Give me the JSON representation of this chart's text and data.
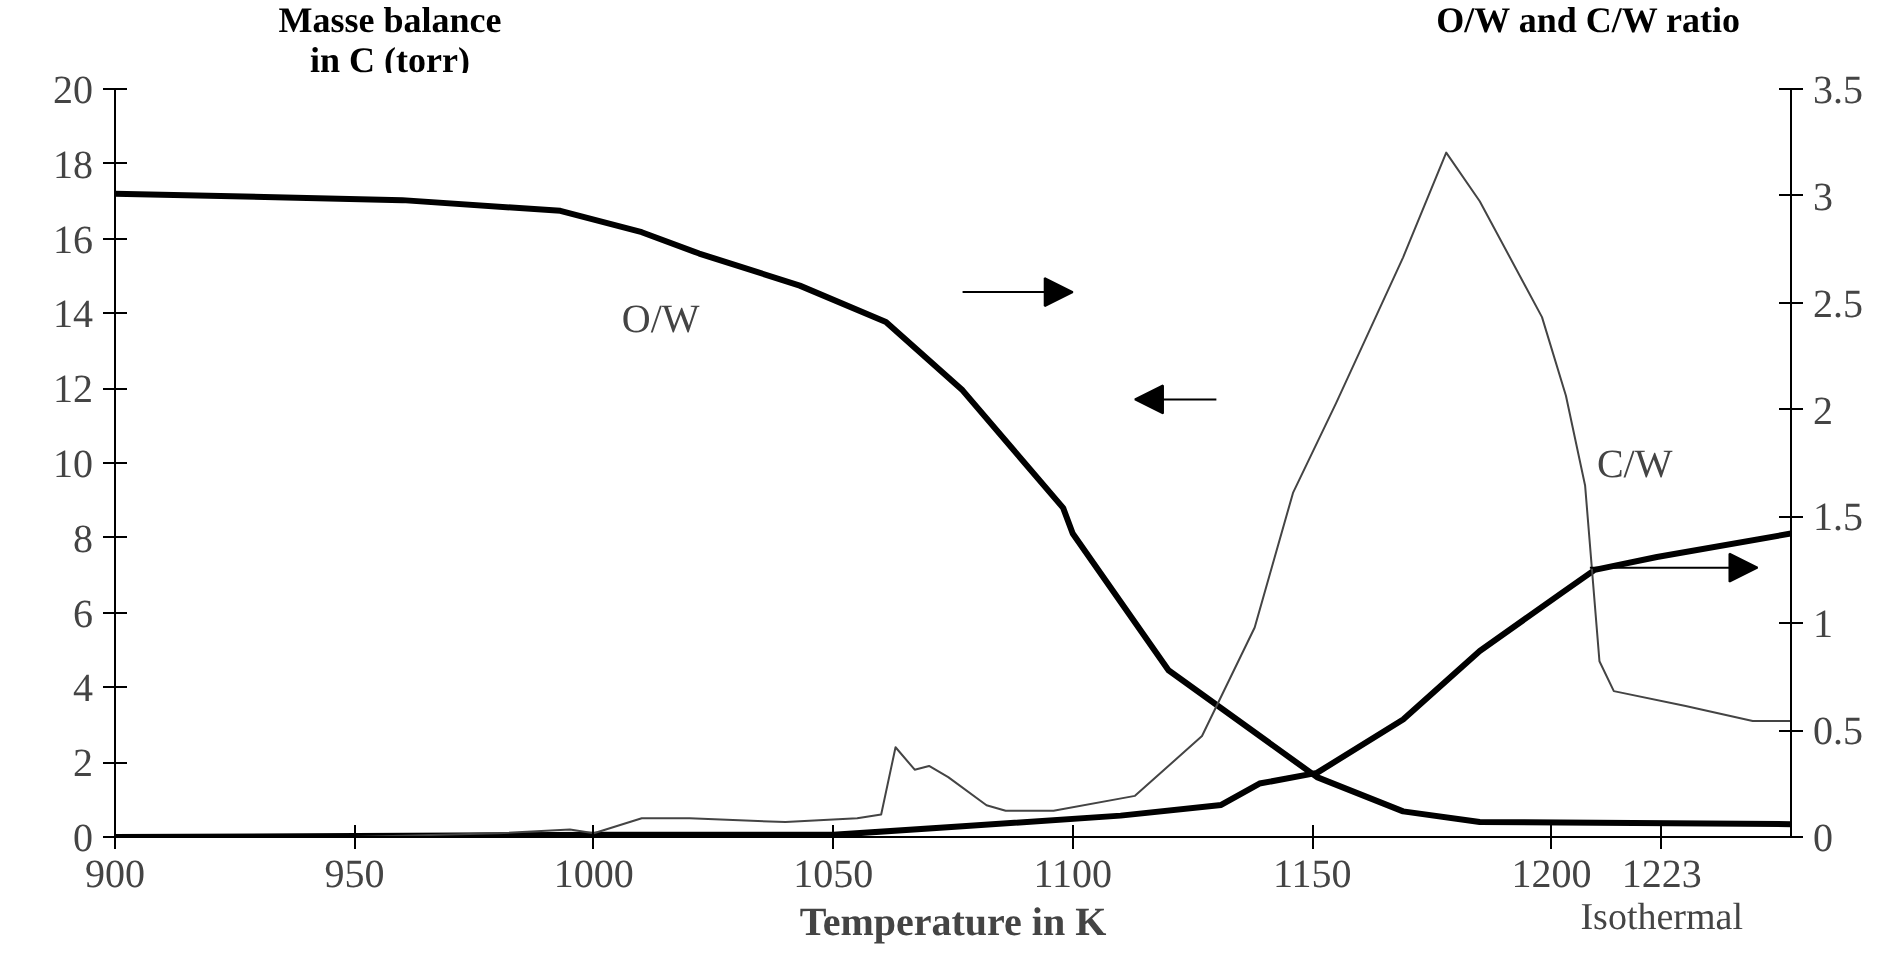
{
  "chart_data": {
    "type": "line",
    "xlabel": "Temperature in K",
    "ylabel": "Masse balance\nin C (torr)",
    "y2label": "O/W and C/W ratio",
    "xlim": [
      900,
      1250
    ],
    "xticks": [
      900,
      950,
      1000,
      1050,
      1100,
      1150,
      1200,
      1223
    ],
    "ylim": [
      0,
      20
    ],
    "yticks": [
      0,
      2,
      4,
      6,
      8,
      10,
      12,
      14,
      16,
      18,
      20
    ],
    "y2lim": [
      0,
      3.5
    ],
    "y2ticks": [
      0,
      0.5,
      1,
      1.5,
      2,
      2.5,
      3,
      3.5
    ],
    "grid": false,
    "marker": "none",
    "line_style": "solid",
    "annotations": [
      "Isothermal"
    ],
    "series": [
      {
        "name": "O/W",
        "axis": "y2",
        "color": "#000000",
        "x": [
          900,
          960,
          993,
          1010,
          1022,
          1043,
          1061,
          1077,
          1098,
          1100,
          1120,
          1151,
          1169,
          1185,
          1250
        ],
        "values": [
          3.01,
          2.98,
          2.93,
          2.83,
          2.73,
          2.58,
          2.41,
          2.09,
          1.54,
          1.42,
          0.78,
          0.28,
          0.12,
          0.07,
          0.06
        ]
      },
      {
        "name": "C/W",
        "axis": "y2",
        "color": "#000000",
        "x": [
          900,
          1001,
          1050,
          1077,
          1110,
          1131,
          1139,
          1151,
          1169,
          1185,
          1202,
          1209,
          1222,
          1250
        ],
        "values": [
          0,
          0.01,
          0.01,
          0.05,
          0.1,
          0.15,
          0.25,
          0.3,
          0.55,
          0.87,
          1.14,
          1.25,
          1.31,
          1.42
        ]
      },
      {
        "axis": "y",
        "color": "#444444",
        "x": [
          900,
          920,
          950,
          980,
          995,
          1000,
          1010,
          1020,
          1040,
          1055,
          1060,
          1063,
          1067,
          1070,
          1074,
          1082,
          1086,
          1096,
          1113,
          1127,
          1138,
          1146,
          1155,
          1169,
          1178,
          1185,
          1198,
          1203,
          1207,
          1210,
          1213,
          1228,
          1242,
          1250
        ],
        "values": [
          0,
          0,
          0,
          0.1,
          0.2,
          0.1,
          0.5,
          0.5,
          0.4,
          0.5,
          0.6,
          2.4,
          1.8,
          1.9,
          1.6,
          0.85,
          0.7,
          0.7,
          1.1,
          2.7,
          5.6,
          9.2,
          11.6,
          15.5,
          18.3,
          17.0,
          13.9,
          11.8,
          9.4,
          4.7,
          3.9,
          3.5,
          3.1,
          3.1
        ]
      }
    ]
  }
}
